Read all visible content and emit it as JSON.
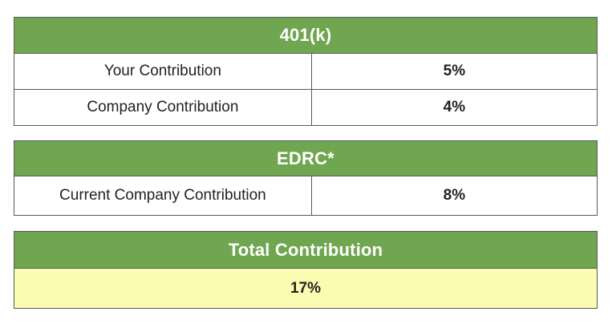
{
  "colors": {
    "header_green": "#6FA64F",
    "total_yellow": "#FBFBB1",
    "border_dark": "#58585A",
    "divider_light": "#A9A9A9",
    "header_text": "#FFFFFF",
    "body_text": "#231F20"
  },
  "tables": [
    {
      "title": "401(k)",
      "rows": [
        {
          "label": "Your Contribution",
          "value": "5%"
        },
        {
          "label": "Company Contribution",
          "value": "4%"
        }
      ]
    },
    {
      "title": "EDRC*",
      "rows": [
        {
          "label": "Current Company Contribution",
          "value": "8%"
        }
      ]
    },
    {
      "title": "Total Contribution",
      "total_value": "17%"
    }
  ]
}
